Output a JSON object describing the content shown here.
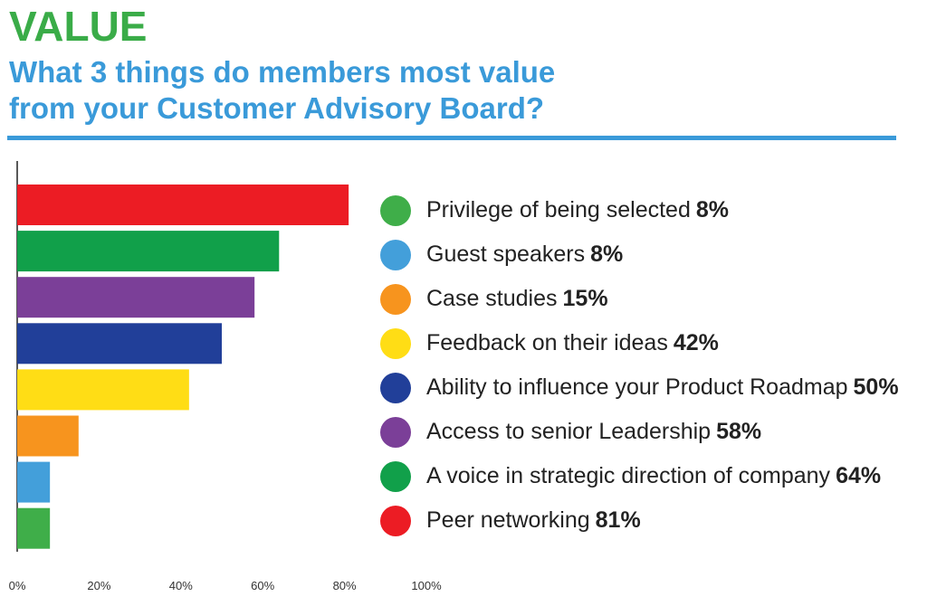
{
  "heading": "VALUE",
  "subtitle_lines": [
    "What 3 things do members most value",
    "from your Customer Advisory Board?"
  ],
  "colors": {
    "heading": "#3aac48",
    "subtitle": "#3a9ad9",
    "rule": "#3a9ad9"
  },
  "chart_data": {
    "type": "bar",
    "orientation": "horizontal",
    "title": "What 3 things do members most value from your Customer Advisory Board?",
    "xlim": [
      0,
      100
    ],
    "xticks": [
      "0%",
      "20%",
      "40%",
      "60%",
      "80%",
      "100%"
    ],
    "grid": false,
    "legend_position": "right",
    "bars": [
      {
        "label": "Peer networking",
        "value": 81,
        "value_label": "81%",
        "color": "#ec1c24"
      },
      {
        "label": "A voice in strategic direction of company",
        "value": 64,
        "value_label": "64%",
        "color": "#11a04a"
      },
      {
        "label": "Access to senior Leadership",
        "value": 58,
        "value_label": "58%",
        "color": "#7b3f98"
      },
      {
        "label": "Ability to influence your Product Roadmap",
        "value": 50,
        "value_label": "50%",
        "color": "#213f99"
      },
      {
        "label": "Feedback on their ideas",
        "value": 42,
        "value_label": "42%",
        "color": "#ffdd15"
      },
      {
        "label": "Case studies",
        "value": 15,
        "value_label": "15%",
        "color": "#f7941e"
      },
      {
        "label": "Guest speakers",
        "value": 8,
        "value_label": "8%",
        "color": "#439fda"
      },
      {
        "label": "Privilege of being selected",
        "value": 8,
        "value_label": "8%",
        "color": "#3fae49"
      }
    ],
    "legend_order": [
      7,
      6,
      5,
      4,
      3,
      2,
      1,
      0
    ]
  }
}
